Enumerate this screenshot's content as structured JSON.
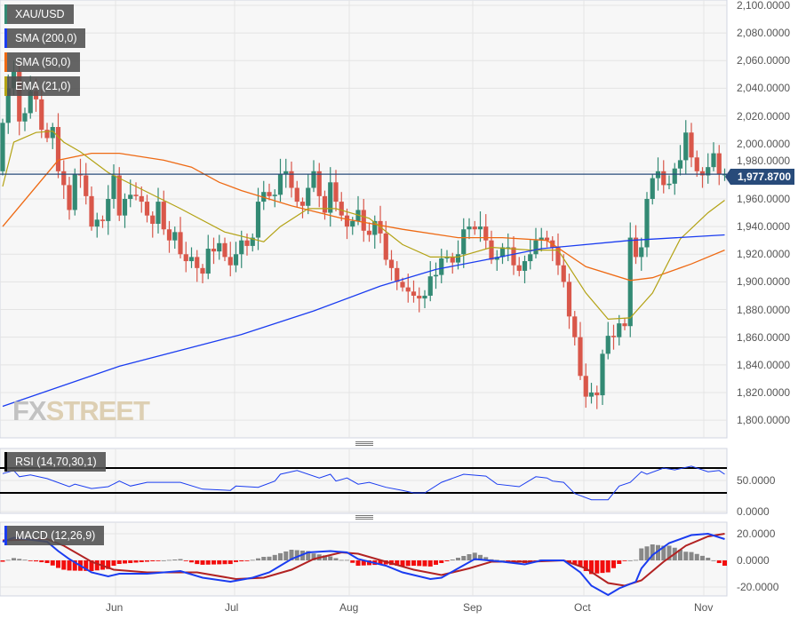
{
  "chart_data": {
    "type": "candlestick",
    "symbol": "XAU/USD",
    "indicators": [
      "SMA (200,0)",
      "SMA (50,0)",
      "EMA (21,0)"
    ],
    "last_price": "1,977.8700",
    "colors": {
      "up": "#338a74",
      "down": "#d9574a",
      "sma200": "#1a3cf0",
      "sma50": "#ee6a14",
      "ema21": "#b3a214",
      "last": "#284b7a"
    },
    "ylim": [
      1790,
      2105
    ],
    "y_ticks": [
      "2,100.0000",
      "2,080.0000",
      "2,060.0000",
      "2,040.0000",
      "2,020.0000",
      "2,000.0000",
      "1,980.0000",
      "1,960.0000",
      "1,940.0000",
      "1,920.0000",
      "1,900.0000",
      "1,880.0000",
      "1,860.0000",
      "1,840.0000",
      "1,820.0000",
      "1,800.0000"
    ],
    "y_tick_values": [
      2100,
      2080,
      2060,
      2040,
      2020,
      2000,
      1980,
      1960,
      1940,
      1920,
      1900,
      1880,
      1860,
      1840,
      1820,
      1800
    ],
    "x_ticks": [
      "Jun",
      "Jul",
      "Aug",
      "Sep",
      "Oct",
      "Nov"
    ],
    "first_open": 1980,
    "closes": [
      2015,
      2040,
      2052,
      2016,
      2022,
      2038,
      2032,
      2010,
      2004,
      2012,
      1980,
      1970,
      1952,
      1978,
      1977,
      1962,
      1940,
      1945,
      1944,
      1960,
      1977,
      1948,
      1960,
      1963,
      1962,
      1958,
      1948,
      1942,
      1958,
      1938,
      1930,
      1936,
      1920,
      1915,
      1918,
      1910,
      1906,
      1924,
      1922,
      1928,
      1918,
      1912,
      1920,
      1930,
      1926,
      1932,
      1958,
      1965,
      1962,
      1963,
      1978,
      1980,
      1968,
      1958,
      1955,
      1968,
      1980,
      1962,
      1950,
      1972,
      1958,
      1948,
      1940,
      1944,
      1952,
      1937,
      1934,
      1944,
      1935,
      1916,
      1910,
      1900,
      1896,
      1893,
      1890,
      1888,
      1890,
      1904,
      1905,
      1917,
      1918,
      1914,
      1920,
      1938,
      1940,
      1938,
      1940,
      1930,
      1916,
      1918,
      1925,
      1925,
      1912,
      1908,
      1915,
      1920,
      1930,
      1932,
      1930,
      1925,
      1912,
      1900,
      1875,
      1860,
      1832,
      1817,
      1820,
      1818,
      1848,
      1861,
      1860,
      1870,
      1868,
      1932,
      1918,
      1925,
      1960,
      1975,
      1980,
      1970,
      1971,
      1982,
      1988,
      2008,
      1990,
      1980,
      1977,
      1983,
      1993,
      1978,
      1978
    ],
    "sma200": [
      [
        0,
        1810
      ],
      [
        21,
        1839
      ],
      [
        43,
        1862
      ],
      [
        56,
        1879
      ],
      [
        68,
        1897
      ],
      [
        78,
        1909
      ],
      [
        87,
        1916
      ],
      [
        97,
        1924
      ],
      [
        113,
        1930
      ],
      [
        130,
        1934
      ]
    ],
    "sma50": [
      [
        0,
        1940
      ],
      [
        10,
        1988
      ],
      [
        16,
        1993
      ],
      [
        21,
        1993
      ],
      [
        29,
        1988
      ],
      [
        34,
        1983
      ],
      [
        39,
        1972
      ],
      [
        43,
        1966
      ],
      [
        52,
        1955
      ],
      [
        61,
        1946
      ],
      [
        72,
        1938
      ],
      [
        82,
        1932
      ],
      [
        90,
        1932
      ],
      [
        98,
        1930
      ],
      [
        105,
        1911
      ],
      [
        113,
        1901
      ],
      [
        117,
        1903
      ],
      [
        124,
        1913
      ],
      [
        130,
        1923
      ]
    ],
    "ema21": [
      [
        0,
        1969
      ],
      [
        2,
        2001
      ],
      [
        6,
        2008
      ],
      [
        9,
        2009
      ],
      [
        11,
        2001
      ],
      [
        14,
        1994
      ],
      [
        19,
        1979
      ],
      [
        24,
        1969
      ],
      [
        32,
        1953
      ],
      [
        40,
        1936
      ],
      [
        47,
        1929
      ],
      [
        50,
        1940
      ],
      [
        55,
        1953
      ],
      [
        60,
        1953
      ],
      [
        66,
        1946
      ],
      [
        72,
        1927
      ],
      [
        77,
        1918
      ],
      [
        82,
        1918
      ],
      [
        88,
        1925
      ],
      [
        95,
        1923
      ],
      [
        100,
        1923
      ],
      [
        105,
        1892
      ],
      [
        109,
        1873
      ],
      [
        113,
        1874
      ],
      [
        117,
        1892
      ],
      [
        122,
        1931
      ],
      [
        127,
        1950
      ],
      [
        130,
        1959
      ]
    ],
    "rsi": {
      "label": "RSI (14,70,30,1)",
      "levels": [
        70,
        30
      ],
      "y_ticks": [
        "50.0000",
        "0.0000"
      ],
      "y_tick_values": [
        50,
        0
      ],
      "values": [
        [
          0,
          61
        ],
        [
          2,
          66
        ],
        [
          3,
          56
        ],
        [
          5,
          59
        ],
        [
          8,
          53
        ],
        [
          12,
          40
        ],
        [
          13,
          44
        ],
        [
          16,
          37
        ],
        [
          19,
          40
        ],
        [
          21,
          49
        ],
        [
          23,
          41
        ],
        [
          26,
          47
        ],
        [
          32,
          47
        ],
        [
          36,
          36
        ],
        [
          41,
          34
        ],
        [
          42,
          41
        ],
        [
          46,
          39
        ],
        [
          49,
          49
        ],
        [
          50,
          60
        ],
        [
          53,
          66
        ],
        [
          57,
          54
        ],
        [
          59,
          60
        ],
        [
          60,
          49
        ],
        [
          62,
          54
        ],
        [
          64,
          44
        ],
        [
          66,
          47
        ],
        [
          69,
          39
        ],
        [
          72,
          34
        ],
        [
          74,
          30
        ],
        [
          76,
          30
        ],
        [
          79,
          47
        ],
        [
          83,
          60
        ],
        [
          87,
          57
        ],
        [
          89,
          44
        ],
        [
          93,
          40
        ],
        [
          96,
          56
        ],
        [
          98,
          54
        ],
        [
          99,
          49
        ],
        [
          101,
          47
        ],
        [
          103,
          29
        ],
        [
          106,
          19
        ],
        [
          109,
          19
        ],
        [
          111,
          41
        ],
        [
          113,
          47
        ],
        [
          115,
          64
        ],
        [
          116,
          60
        ],
        [
          119,
          70
        ],
        [
          121,
          67
        ],
        [
          124,
          73
        ],
        [
          127,
          64
        ],
        [
          129,
          66
        ],
        [
          130,
          60
        ]
      ]
    },
    "macd": {
      "label": "MACD (12,26,9)",
      "y_ticks": [
        "20.0000",
        "0.0000",
        "-20.0000"
      ],
      "y_tick_values": [
        20,
        0,
        -20
      ],
      "macd": [
        [
          0,
          14
        ],
        [
          2,
          17
        ],
        [
          8,
          14
        ],
        [
          10,
          7
        ],
        [
          12,
          1
        ],
        [
          16,
          -9
        ],
        [
          19,
          -12
        ],
        [
          21,
          -10
        ],
        [
          26,
          -10
        ],
        [
          32,
          -8
        ],
        [
          36,
          -13
        ],
        [
          41,
          -16
        ],
        [
          45,
          -13
        ],
        [
          48,
          -9
        ],
        [
          52,
          1
        ],
        [
          55,
          6
        ],
        [
          59,
          7
        ],
        [
          62,
          6
        ],
        [
          64,
          1
        ],
        [
          69,
          -4
        ],
        [
          72,
          -9
        ],
        [
          77,
          -14
        ],
        [
          79,
          -13
        ],
        [
          82,
          -6
        ],
        [
          85,
          1
        ],
        [
          90,
          -1
        ],
        [
          94,
          -3
        ],
        [
          97,
          0
        ],
        [
          101,
          0
        ],
        [
          104,
          -9
        ],
        [
          106,
          -19
        ],
        [
          109,
          -26
        ],
        [
          111,
          -21
        ],
        [
          114,
          -16
        ],
        [
          115,
          -6
        ],
        [
          117,
          4
        ],
        [
          120,
          13
        ],
        [
          124,
          19
        ],
        [
          127,
          20
        ],
        [
          130,
          16
        ]
      ],
      "signal": [
        [
          0,
          15
        ],
        [
          8,
          16
        ],
        [
          11,
          11
        ],
        [
          16,
          -1
        ],
        [
          20,
          -7
        ],
        [
          26,
          -9
        ],
        [
          35,
          -9
        ],
        [
          42,
          -14
        ],
        [
          47,
          -13
        ],
        [
          52,
          -7
        ],
        [
          56,
          1
        ],
        [
          61,
          6
        ],
        [
          64,
          5
        ],
        [
          69,
          -1
        ],
        [
          74,
          -7
        ],
        [
          79,
          -11
        ],
        [
          84,
          -6
        ],
        [
          88,
          -1
        ],
        [
          95,
          -1
        ],
        [
          101,
          0
        ],
        [
          105,
          -6
        ],
        [
          109,
          -17
        ],
        [
          112,
          -19
        ],
        [
          115,
          -15
        ],
        [
          119,
          -1
        ],
        [
          123,
          11
        ],
        [
          127,
          18
        ],
        [
          130,
          20
        ]
      ]
    }
  },
  "logo": "FXSTREET"
}
